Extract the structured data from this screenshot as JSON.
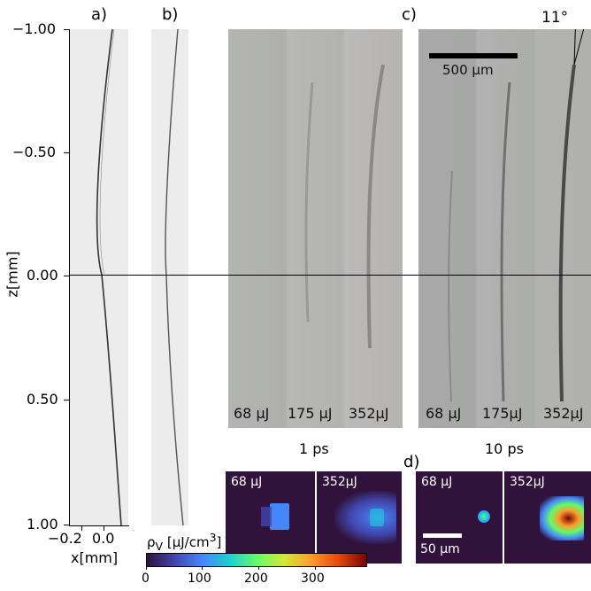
{
  "panels": {
    "a": "a)",
    "b": "b)",
    "c": "c)",
    "d": "d)"
  },
  "angle_label": "11°",
  "scale_bar_top": "500 µm",
  "scale_bar_inset": "50 µm",
  "axes": {
    "ylabel": "z[mm]",
    "xlabel": "x[mm]",
    "yticks": [
      "−1.00",
      "−0.50",
      "0.00",
      "0.50",
      "1.00"
    ],
    "xticks": [
      "−0.2",
      "0.0"
    ]
  },
  "photo_1ps": {
    "caption": "1 ps",
    "labels": [
      "68 µJ",
      "175 µJ",
      "352µJ"
    ]
  },
  "photo_10ps": {
    "caption": "10 ps",
    "labels": [
      "68 µJ",
      "175µJ",
      "352µJ"
    ]
  },
  "inset_labels": [
    "68 µJ",
    "352µJ",
    "68 µJ",
    "352µJ"
  ],
  "colorbar": {
    "label_html": "ρ<sub>V</sub> [µJ/cm<sup>3</sup>]",
    "ticks": [
      "0",
      "100",
      "200",
      "300"
    ],
    "colormap": [
      "#30123b",
      "#4146ac",
      "#4686fb",
      "#1bd0d5",
      "#62fc6b",
      "#d2e935",
      "#fe9b2d",
      "#e4460a",
      "#7a0403"
    ]
  }
}
